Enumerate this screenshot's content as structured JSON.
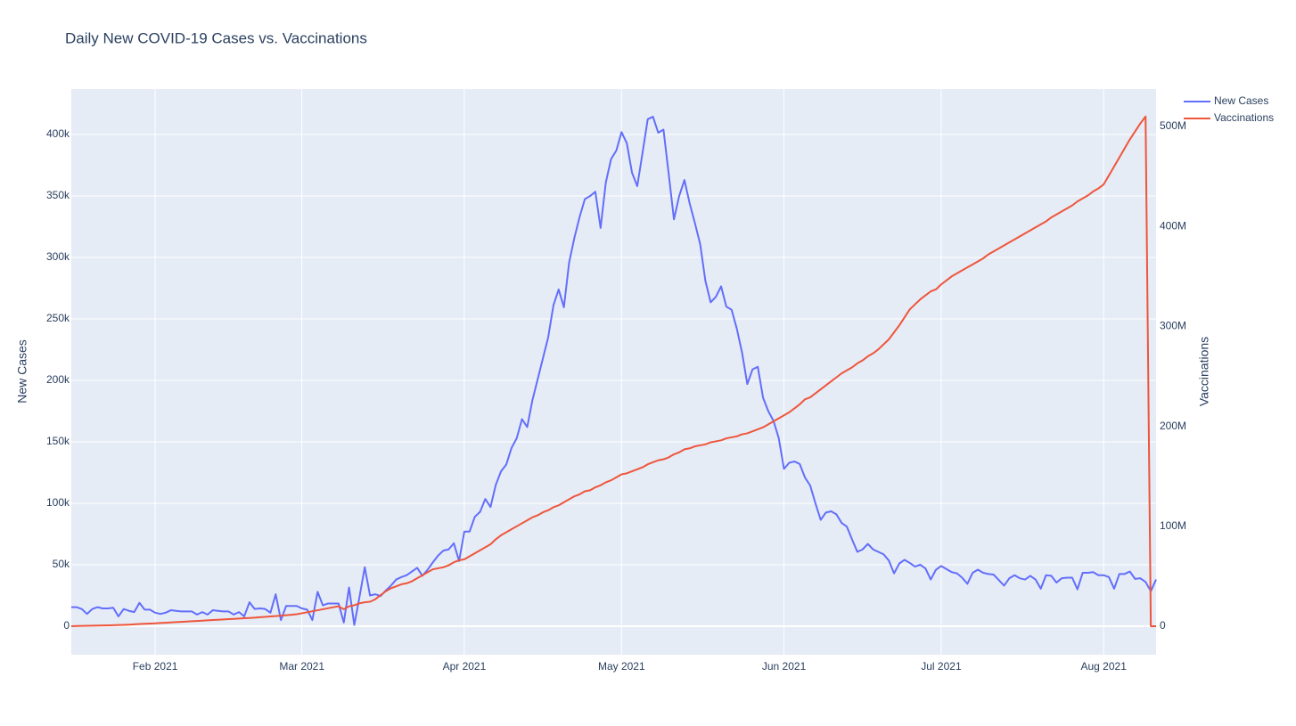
{
  "chart_data": {
    "type": "line",
    "title": "Daily New COVID-19 Cases vs. Vaccinations",
    "y_label": "New Cases",
    "y2_label": "Vaccinations",
    "legend": "top-right",
    "grid": true,
    "background": "#e5ecf6",
    "xlim": [
      "2021-01-16",
      "2021-08-11"
    ],
    "xticks": [
      {
        "value": "2021-02-01",
        "label": "Feb 2021"
      },
      {
        "value": "2021-03-01",
        "label": "Mar 2021"
      },
      {
        "value": "2021-04-01",
        "label": "Apr 2021"
      },
      {
        "value": "2021-05-01",
        "label": "May 2021"
      },
      {
        "value": "2021-06-01",
        "label": "Jun 2021"
      },
      {
        "value": "2021-07-01",
        "label": "Jul 2021"
      },
      {
        "value": "2021-08-01",
        "label": "Aug 2021"
      }
    ],
    "ylim": [
      -23200,
      437000
    ],
    "yticks": [
      0,
      {
        "value": 50000,
        "label": "50k"
      },
      {
        "value": 100000,
        "label": "100k"
      },
      {
        "value": 150000,
        "label": "150k"
      },
      {
        "value": 200000,
        "label": "200k"
      },
      {
        "value": 250000,
        "label": "250k"
      },
      {
        "value": 300000,
        "label": "300k"
      },
      {
        "value": 350000,
        "label": "350k"
      },
      {
        "value": 400000,
        "label": "400k"
      }
    ],
    "y2lim": [
      -28500000,
      537400000
    ],
    "y2ticks": [
      0,
      {
        "value": 100000000,
        "label": "100M"
      },
      {
        "value": 200000000,
        "label": "200M"
      },
      {
        "value": 300000000,
        "label": "300M"
      },
      {
        "value": 400000000,
        "label": "400M"
      },
      {
        "value": 500000000,
        "label": "500M"
      }
    ],
    "x": [
      "2021-01-16",
      "2021-01-17",
      "2021-01-18",
      "2021-01-19",
      "2021-01-20",
      "2021-01-21",
      "2021-01-22",
      "2021-01-23",
      "2021-01-24",
      "2021-01-25",
      "2021-01-26",
      "2021-01-27",
      "2021-01-28",
      "2021-01-29",
      "2021-01-30",
      "2021-01-31",
      "2021-02-01",
      "2021-02-02",
      "2021-02-03",
      "2021-02-04",
      "2021-02-05",
      "2021-02-06",
      "2021-02-07",
      "2021-02-08",
      "2021-02-09",
      "2021-02-10",
      "2021-02-11",
      "2021-02-12",
      "2021-02-13",
      "2021-02-14",
      "2021-02-15",
      "2021-02-16",
      "2021-02-17",
      "2021-02-18",
      "2021-02-19",
      "2021-02-20",
      "2021-02-21",
      "2021-02-22",
      "2021-02-23",
      "2021-02-24",
      "2021-02-25",
      "2021-02-26",
      "2021-02-27",
      "2021-02-28",
      "2021-03-01",
      "2021-03-02",
      "2021-03-03",
      "2021-03-04",
      "2021-03-05",
      "2021-03-06",
      "2021-03-07",
      "2021-03-08",
      "2021-03-09",
      "2021-03-10",
      "2021-03-11",
      "2021-03-12",
      "2021-03-13",
      "2021-03-14",
      "2021-03-15",
      "2021-03-16",
      "2021-03-17",
      "2021-03-18",
      "2021-03-19",
      "2021-03-20",
      "2021-03-21",
      "2021-03-22",
      "2021-03-23",
      "2021-03-24",
      "2021-03-25",
      "2021-03-26",
      "2021-03-27",
      "2021-03-28",
      "2021-03-29",
      "2021-03-30",
      "2021-03-31",
      "2021-04-01",
      "2021-04-02",
      "2021-04-03",
      "2021-04-04",
      "2021-04-05",
      "2021-04-06",
      "2021-04-07",
      "2021-04-08",
      "2021-04-09",
      "2021-04-10",
      "2021-04-11",
      "2021-04-12",
      "2021-04-13",
      "2021-04-14",
      "2021-04-15",
      "2021-04-16",
      "2021-04-17",
      "2021-04-18",
      "2021-04-19",
      "2021-04-20",
      "2021-04-21",
      "2021-04-22",
      "2021-04-23",
      "2021-04-24",
      "2021-04-25",
      "2021-04-26",
      "2021-04-27",
      "2021-04-28",
      "2021-04-29",
      "2021-04-30",
      "2021-05-01",
      "2021-05-02",
      "2021-05-03",
      "2021-05-04",
      "2021-05-05",
      "2021-05-06",
      "2021-05-07",
      "2021-05-08",
      "2021-05-09",
      "2021-05-10",
      "2021-05-11",
      "2021-05-12",
      "2021-05-13",
      "2021-05-14",
      "2021-05-15",
      "2021-05-16",
      "2021-05-17",
      "2021-05-18",
      "2021-05-19",
      "2021-05-20",
      "2021-05-21",
      "2021-05-22",
      "2021-05-23",
      "2021-05-24",
      "2021-05-25",
      "2021-05-26",
      "2021-05-27",
      "2021-05-28",
      "2021-05-29",
      "2021-05-30",
      "2021-05-31",
      "2021-06-01",
      "2021-06-02",
      "2021-06-03",
      "2021-06-04",
      "2021-06-05",
      "2021-06-06",
      "2021-06-07",
      "2021-06-08",
      "2021-06-09",
      "2021-06-10",
      "2021-06-11",
      "2021-06-12",
      "2021-06-13",
      "2021-06-14",
      "2021-06-15",
      "2021-06-16",
      "2021-06-17",
      "2021-06-18",
      "2021-06-19",
      "2021-06-20",
      "2021-06-21",
      "2021-06-22",
      "2021-06-23",
      "2021-06-24",
      "2021-06-25",
      "2021-06-26",
      "2021-06-27",
      "2021-06-28",
      "2021-06-29",
      "2021-06-30",
      "2021-07-01",
      "2021-07-02",
      "2021-07-03",
      "2021-07-04",
      "2021-07-05",
      "2021-07-06",
      "2021-07-07",
      "2021-07-08",
      "2021-07-09",
      "2021-07-10",
      "2021-07-11",
      "2021-07-12",
      "2021-07-13",
      "2021-07-14",
      "2021-07-15",
      "2021-07-16",
      "2021-07-17",
      "2021-07-18",
      "2021-07-19",
      "2021-07-20",
      "2021-07-21",
      "2021-07-22",
      "2021-07-23",
      "2021-07-24",
      "2021-07-25",
      "2021-07-26",
      "2021-07-27",
      "2021-07-28",
      "2021-07-29",
      "2021-07-30",
      "2021-07-31",
      "2021-08-01",
      "2021-08-02",
      "2021-08-03",
      "2021-08-04",
      "2021-08-05",
      "2021-08-06",
      "2021-08-07",
      "2021-08-08",
      "2021-08-09",
      "2021-08-10",
      "2021-08-11"
    ],
    "series": [
      {
        "name": "New Cases",
        "color": "#636efa",
        "values": [
          15500,
          15500,
          14000,
          10000,
          14000,
          15500,
          14500,
          14500,
          15000,
          8000,
          14000,
          12500,
          11500,
          19000,
          13500,
          13500,
          11000,
          10000,
          11000,
          13000,
          12500,
          12000,
          12000,
          12000,
          9500,
          11500,
          9500,
          13000,
          12500,
          12000,
          12000,
          9500,
          11500,
          8000,
          19500,
          14000,
          14500,
          14000,
          11000,
          26000,
          5000,
          16500,
          16500,
          16500,
          14500,
          13500,
          5000,
          28000,
          17000,
          18500,
          18500,
          18500,
          3000,
          31500,
          1000,
          24000,
          48000,
          25000,
          26000,
          24500,
          29000,
          33000,
          38000,
          40000,
          41500,
          44500,
          47500,
          41000,
          46000,
          52000,
          57500,
          61500,
          62500,
          67500,
          53000,
          77000,
          77000,
          89000,
          93000,
          103500,
          97000,
          115000,
          126000,
          131500,
          145000,
          153000,
          168500,
          162000,
          184000,
          201000,
          218000,
          235000,
          261000,
          274000,
          259500,
          296000,
          316000,
          333000,
          347500,
          350000,
          353500,
          324000,
          361000,
          380000,
          387000,
          402000,
          393000,
          369000,
          358000,
          385000,
          412500,
          414500,
          401500,
          404000,
          368000,
          331000,
          350000,
          363000,
          344000,
          328000,
          311000,
          281000,
          263500,
          268000,
          276500,
          260000,
          257500,
          242000,
          222500,
          197000,
          209000,
          211000,
          186000,
          175000,
          167000,
          153000,
          128000,
          133000,
          134000,
          132000,
          121000,
          114500,
          100000,
          86500,
          92500,
          93500,
          91000,
          84000,
          81000,
          70500,
          60500,
          62500,
          67000,
          62500,
          60500,
          58500,
          53500,
          43000,
          51000,
          54000,
          51500,
          48500,
          50000,
          47000,
          38000,
          46000,
          49000,
          46500,
          44000,
          43000,
          39500,
          34500,
          43500,
          46000,
          43500,
          42500,
          42000,
          37500,
          33000,
          39000,
          41500,
          39000,
          38000,
          41000,
          38000,
          30500,
          41500,
          41000,
          35500,
          39000,
          39500,
          39500,
          30000,
          43500,
          43500,
          44000,
          41500,
          41500,
          40000,
          30500,
          42500,
          42500,
          44500,
          38500,
          39000,
          36000,
          28500,
          38000
        ]
      },
      {
        "name": "Vaccinations",
        "color": "#ef553b",
        "axis": "y2",
        "values": [
          0,
          200000,
          400000,
          500000,
          600000,
          700000,
          800000,
          900000,
          1000000,
          1200000,
          1400000,
          1600000,
          1900000,
          2200000,
          2500000,
          2700000,
          2900000,
          3200000,
          3500000,
          3800000,
          4100000,
          4400000,
          4700000,
          5000000,
          5300000,
          5600000,
          5900000,
          6200000,
          6500000,
          6800000,
          7100000,
          7400000,
          7700000,
          8000000,
          8300000,
          8600000,
          9000000,
          9400000,
          9800000,
          10200000,
          10600000,
          11000000,
          11500000,
          12000000,
          13000000,
          14000000,
          15000000,
          16000000,
          17000000,
          18000000,
          19000000,
          20000000,
          17000000,
          20000000,
          21000000,
          23000000,
          24000000,
          24500000,
          27000000,
          31000000,
          35000000,
          38000000,
          40000000,
          42000000,
          43000000,
          45000000,
          48000000,
          51000000,
          54000000,
          57000000,
          58000000,
          59000000,
          61000000,
          64000000,
          66000000,
          67000000,
          70000000,
          73000000,
          76000000,
          79000000,
          82000000,
          87000000,
          91000000,
          94000000,
          97000000,
          100000000,
          103000000,
          106000000,
          109000000,
          111000000,
          114000000,
          116000000,
          119000000,
          121000000,
          124000000,
          127000000,
          130000000,
          132000000,
          135000000,
          136000000,
          139000000,
          141000000,
          144000000,
          146000000,
          149000000,
          152000000,
          153000000,
          155000000,
          157000000,
          159000000,
          162000000,
          164000000,
          166000000,
          167000000,
          169000000,
          172000000,
          174000000,
          177000000,
          178000000,
          180000000,
          181000000,
          182000000,
          184000000,
          185000000,
          186000000,
          188000000,
          189000000,
          190000000,
          192000000,
          193000000,
          195000000,
          197000000,
          199000000,
          202000000,
          205000000,
          208000000,
          211000000,
          214000000,
          218000000,
          222000000,
          227000000,
          229000000,
          233000000,
          237000000,
          241000000,
          245000000,
          249000000,
          253000000,
          256000000,
          259000000,
          263000000,
          266000000,
          270000000,
          273000000,
          277000000,
          282000000,
          287000000,
          294000000,
          301000000,
          309000000,
          317000000,
          322000000,
          327000000,
          331000000,
          335000000,
          337000000,
          342000000,
          346000000,
          350000000,
          353000000,
          356000000,
          359000000,
          362000000,
          365000000,
          368000000,
          372000000,
          375000000,
          378000000,
          381000000,
          384000000,
          387000000,
          390000000,
          393000000,
          396000000,
          399000000,
          402000000,
          405000000,
          409000000,
          412000000,
          415000000,
          418000000,
          421000000,
          425000000,
          428000000,
          431000000,
          435000000,
          438000000,
          442000000,
          451000000,
          460000000,
          469000000,
          478000000,
          487000000,
          495000000,
          503000000,
          510000000,
          0,
          0
        ]
      }
    ]
  }
}
